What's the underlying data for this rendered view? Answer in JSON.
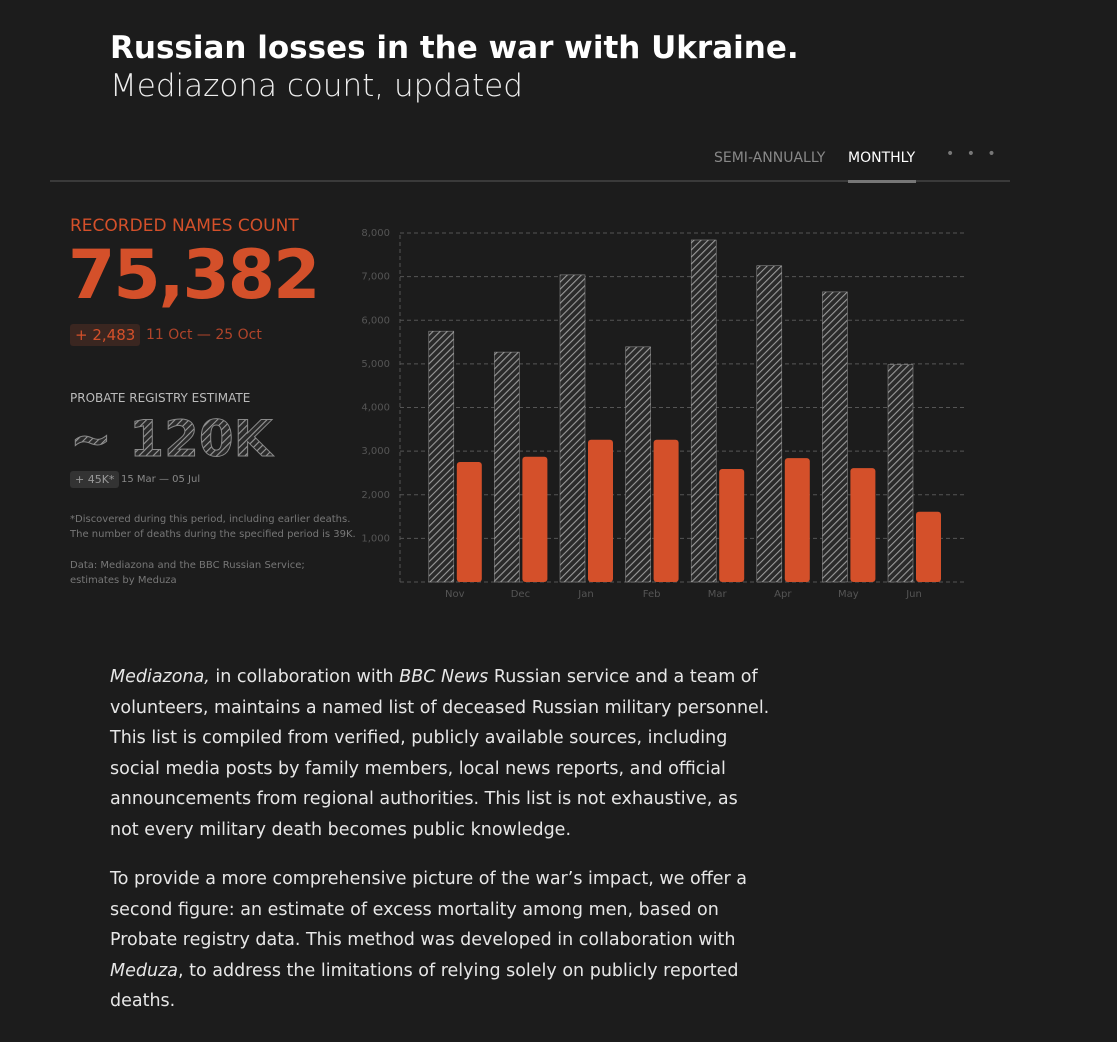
{
  "header": {
    "title": "Russian losses in the war with Ukraine.",
    "subtitle": "Mediazona count, updated"
  },
  "tabs": [
    "SEMI-ANNUALLY",
    "MONTHLY"
  ],
  "stats": {
    "recorded_label": "RECORDED NAMES COUNT",
    "recorded_value": "75,382",
    "recorded_delta": "+ 2,483",
    "recorded_period": "11 Oct — 25 Oct",
    "estimate_label": "PROBATE REGISTRY ESTIMATE",
    "estimate_value": "~ 120K",
    "estimate_delta": "+ 45K*",
    "estimate_period": "15 Mar — 05 Jul",
    "footnote": [
      "*Discovered during this period, including earlier deaths.",
      "The number of deaths during the specified period is 39K."
    ],
    "source": [
      "Data: Mediazona and the BBC Russian Service;",
      "estimates by Meduza"
    ]
  },
  "chart_data": {
    "type": "bar",
    "categories": [
      "Nov",
      "Dec",
      "Jan",
      "Feb",
      "Mar",
      "Apr",
      "May",
      "Jun"
    ],
    "series": [
      {
        "color": "#9a9a9a",
        "hatched": true,
        "values": [
          5750,
          5270,
          7040,
          5390,
          7840,
          7250,
          6650,
          4980
        ]
      },
      {
        "color": "#d4502a",
        "values": [
          2750,
          2870,
          3260,
          3260,
          2590,
          2840,
          2610,
          1610
        ]
      }
    ],
    "ylim": [
      0,
      8000
    ],
    "yticks": [
      {
        "value": 1000,
        "label": "1,000"
      },
      {
        "value": 2000,
        "label": "2,000"
      },
      {
        "value": 3000,
        "label": "3,000"
      },
      {
        "value": 4000,
        "label": "4,000"
      },
      {
        "value": 5000,
        "label": "5,000"
      },
      {
        "value": 6000,
        "label": "6,000"
      },
      {
        "value": 7000,
        "label": "7,000"
      },
      {
        "value": 8000,
        "label": "8,000"
      }
    ],
    "grid": true
  },
  "article": [
    [
      {
        "text": "Mediazona,",
        "italic": true
      },
      {
        "text": " in collaboration with "
      },
      {
        "text": "BBC News",
        "italic": true
      },
      {
        "text": " Russian service and a team of volunteers, maintains a named list of deceased Russian military personnel. This list is compiled from verified, publicly available sources, including social media posts by family members, local news reports, and official announcements from regional authorities. This list is not exhaustive, as not every military death becomes public knowledge."
      }
    ],
    [
      {
        "text": "To provide a more comprehensive picture of the war’s impact, we offer a second figure: an estimate of excess mortality among men, based on Probate registry data. This method was developed in collaboration with "
      },
      {
        "text": "Meduza",
        "italic": true
      },
      {
        "text": ", to address the limitations of relying solely on publicly reported deaths."
      }
    ]
  ]
}
